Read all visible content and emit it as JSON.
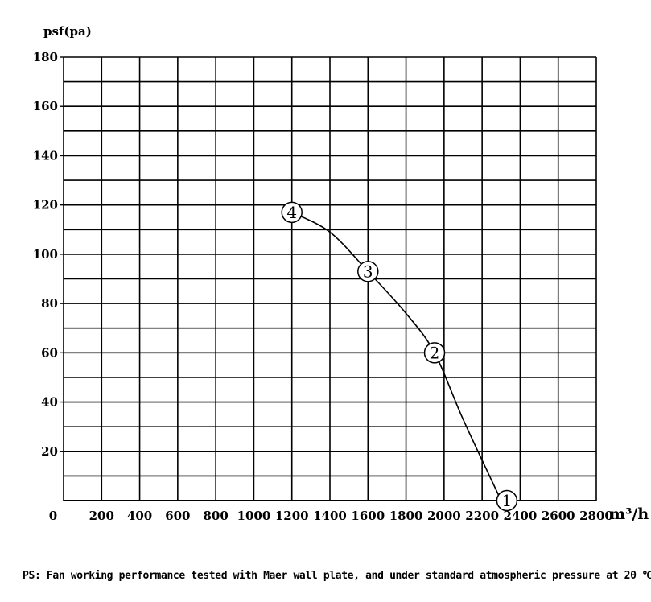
{
  "chart_data": {
    "type": "line",
    "ylabel": "psf(pa)",
    "xlabel": "m³/h",
    "xlim": [
      0,
      2800
    ],
    "ylim": [
      0,
      180
    ],
    "x_ticks": [
      "0",
      "200",
      "400",
      "600",
      "800",
      "1000",
      "1200",
      "1400",
      "1600",
      "1800",
      "2000",
      "2200",
      "2400",
      "2600",
      "2800"
    ],
    "y_ticks": [
      "20",
      "40",
      "60",
      "80",
      "100",
      "120",
      "140",
      "160",
      "180"
    ],
    "grid": true,
    "series": [
      {
        "points": [
          {
            "x": 1200,
            "y": 117
          },
          {
            "x": 1400,
            "y": 109
          },
          {
            "x": 1600,
            "y": 93
          },
          {
            "x": 1800,
            "y": 76
          },
          {
            "x": 1950,
            "y": 60
          },
          {
            "x": 2100,
            "y": 33
          },
          {
            "x": 2300,
            "y": 0
          }
        ],
        "markers": [
          {
            "label": "1",
            "x": 2330,
            "y": 0
          },
          {
            "label": "2",
            "x": 1950,
            "y": 60
          },
          {
            "label": "3",
            "x": 1600,
            "y": 93
          },
          {
            "label": "4",
            "x": 1200,
            "y": 117
          }
        ]
      }
    ]
  },
  "footnote": "PS: Fan working performance tested with Maer wall plate, and under standard atmospheric pressure at 20 ℃."
}
